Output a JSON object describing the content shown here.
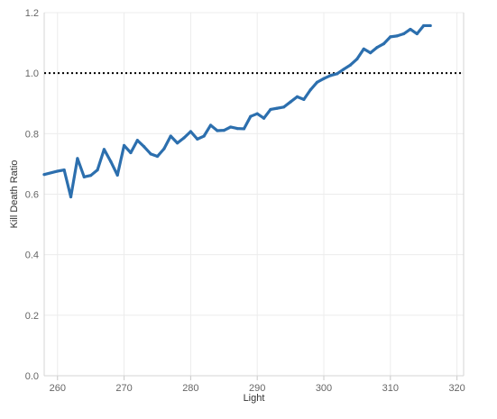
{
  "chart_data": {
    "type": "line",
    "title": "",
    "xlabel": "Light",
    "ylabel": "Kill Death Ratio",
    "xlim": [
      258,
      321
    ],
    "ylim": [
      0,
      1.2
    ],
    "x_ticks": [
      260,
      270,
      280,
      290,
      300,
      310,
      320
    ],
    "y_ticks": [
      0.0,
      0.2,
      0.4,
      0.6,
      0.8,
      1.0,
      1.2
    ],
    "grid": true,
    "reference_line": {
      "y": 1.0,
      "style": "dotted",
      "color": "#000000"
    },
    "series": [
      {
        "color": "#2c6fae",
        "x": [
          258,
          260,
          261,
          262,
          263,
          264,
          265,
          266,
          267,
          268,
          269,
          270,
          271,
          272,
          273,
          274,
          275,
          276,
          277,
          278,
          279,
          280,
          281,
          282,
          283,
          284,
          285,
          286,
          287,
          288,
          289,
          290,
          291,
          292,
          293,
          294,
          295,
          296,
          297,
          298,
          299,
          300,
          301,
          302,
          303,
          304,
          305,
          306,
          307,
          308,
          309,
          310,
          311,
          312,
          313,
          314,
          315,
          316
        ],
        "values": [
          0.665,
          0.676,
          0.68,
          0.591,
          0.718,
          0.657,
          0.662,
          0.68,
          0.748,
          0.708,
          0.663,
          0.761,
          0.737,
          0.778,
          0.757,
          0.733,
          0.725,
          0.75,
          0.792,
          0.769,
          0.786,
          0.807,
          0.782,
          0.792,
          0.828,
          0.81,
          0.811,
          0.822,
          0.817,
          0.816,
          0.857,
          0.866,
          0.851,
          0.88,
          0.884,
          0.888,
          0.905,
          0.922,
          0.913,
          0.945,
          0.97,
          0.982,
          0.992,
          0.998,
          1.013,
          1.027,
          1.047,
          1.08,
          1.067,
          1.085,
          1.097,
          1.12,
          1.123,
          1.13,
          1.145,
          1.13,
          1.157,
          1.157
        ]
      }
    ]
  }
}
